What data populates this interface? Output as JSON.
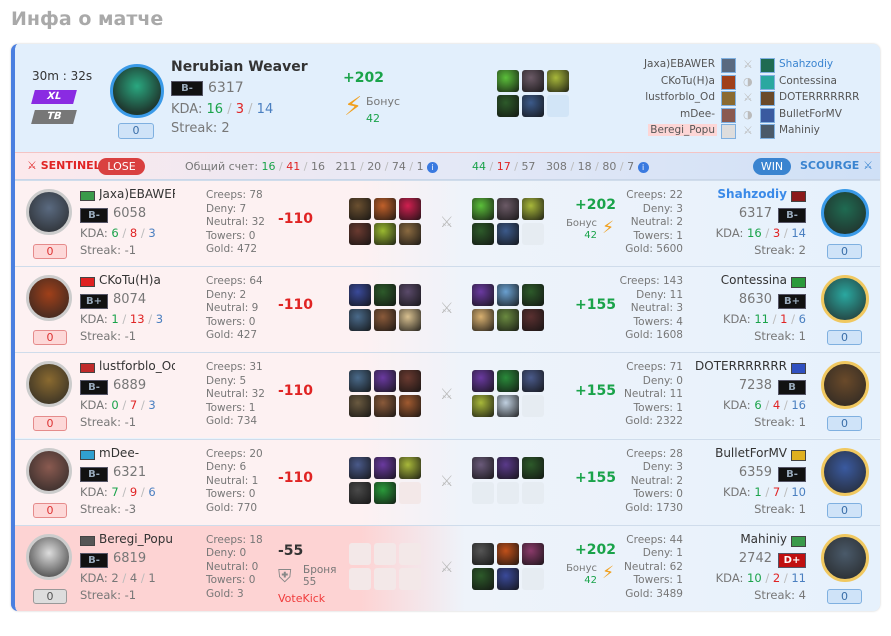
{
  "page_title": "Инфа о матче",
  "match": {
    "duration": "30m : 32s",
    "mode_badges": [
      {
        "label": "XL",
        "color": "#8a2be2"
      },
      {
        "label": "TB",
        "color": "#777777"
      }
    ]
  },
  "featured": {
    "hero": "Nerubian Weaver",
    "rank": "B-",
    "rating": "6317",
    "kda_label": "KDA:",
    "kills": "16",
    "deaths": "3",
    "assists": "14",
    "streak_label": "Streak:",
    "streak": "2",
    "reports": "0",
    "delta": "+202",
    "bonus_label": "Бонус",
    "bonus": "42",
    "avatar_color": "#1f6b52",
    "items": [
      "#5bbf3a",
      "#6b5a66",
      "#a8b83a",
      "#2d5a2a",
      "#3c5a8a",
      null
    ]
  },
  "roster": {
    "sentinel": [
      "Jaxa)EBAWER",
      "CKoTu(H)a",
      "lustforblo_Od",
      "mDee-",
      "Beregi_Popu"
    ],
    "scourge": [
      "Shahzodiy",
      "Contessina",
      "DOTERRRRRRR",
      "BulletForMV",
      "Mahiniy"
    ],
    "middle_icons": [
      "swords-icon",
      "shield-icon",
      "swords-icon",
      "shield-icon",
      "swords-icon"
    ]
  },
  "teams": {
    "sentinel": {
      "name": "SENTINEL",
      "result": "LOSE",
      "score_label": "Общий счет:",
      "k": "16",
      "d": "41",
      "a": "16",
      "creeps": "211",
      "deny": "20",
      "neutral": "74",
      "towers": "1"
    },
    "scourge": {
      "name": "SCOURGE",
      "result": "WIN",
      "k": "44",
      "d": "17",
      "a": "57",
      "creeps": "308",
      "deny": "18",
      "neutral": "80",
      "towers": "7"
    }
  },
  "labels": {
    "creeps": "Creeps:",
    "deny": "Deny:",
    "neutral": "Neutral:",
    "towers": "Towers:",
    "gold": "Gold:",
    "kda": "KDA:",
    "streak": "Streak:",
    "bonus": "Бонус",
    "armor": "Броня",
    "votekick": "VoteKick"
  },
  "rows": [
    {
      "left": {
        "name": "Jaxa)EBAWER",
        "flag": "#3a9a4a",
        "rank": "B-",
        "rating": "6058",
        "k": "6",
        "d": "8",
        "a": "3",
        "streak": "-1",
        "reports": "0",
        "creeps": "78",
        "deny": "7",
        "neutral": "32",
        "towers": "0",
        "gold": "472",
        "delta": "-110",
        "avatar": "#5a6a80",
        "items": [
          "#6b5030",
          "#c0602a",
          "#d02050",
          "#6a3a30",
          "#9ab830",
          "#8a6a40"
        ]
      },
      "right": {
        "name": "Shahzodiy",
        "flag": "#8b1a1a",
        "rank": "B-",
        "rating": "6317",
        "k": "16",
        "d": "3",
        "a": "14",
        "streak": "2",
        "reports": "0",
        "creeps": "22",
        "deny": "3",
        "neutral": "2",
        "towers": "1",
        "gold": "5600",
        "delta": "+202",
        "bonus": "42",
        "avatar": "#1f6b52",
        "highlight": true,
        "items": [
          "#5bbf3a",
          "#6b5a66",
          "#a8b83a",
          "#2d5a2a",
          "#3c5a8a",
          null
        ]
      }
    },
    {
      "left": {
        "name": "CKoTu(H)a",
        "flag": "#e02020",
        "rank": "B+",
        "rating": "8074",
        "k": "1",
        "d": "13",
        "a": "3",
        "streak": "-1",
        "reports": "0",
        "creeps": "64",
        "deny": "2",
        "neutral": "9",
        "towers": "0",
        "gold": "427",
        "delta": "-110",
        "avatar": "#a0401a",
        "items": [
          "#3a4a9a",
          "#2d5a2a",
          "#5a4a6a",
          "#4a6a8a",
          "#8a5a3a",
          "#d8c090"
        ]
      },
      "right": {
        "name": "Contessina",
        "flag": "#2a9a3a",
        "rank": "B+",
        "rating": "8630",
        "k": "11",
        "d": "1",
        "a": "6",
        "streak": "1",
        "reports": "0",
        "creeps": "143",
        "deny": "11",
        "neutral": "3",
        "towers": "4",
        "gold": "1608",
        "delta": "+155",
        "avatar": "#2aa8a0",
        "items": [
          "#6a3aa0",
          "#6aa0d0",
          "#2d5a2a",
          "#d8b070",
          "#6a8a40",
          "#5a3030"
        ]
      }
    },
    {
      "left": {
        "name": "lustforblo_Od",
        "flag": "#c02a2a",
        "rank": "B-",
        "rating": "6889",
        "k": "0",
        "d": "7",
        "a": "3",
        "streak": "-1",
        "reports": "0",
        "creeps": "31",
        "deny": "5",
        "neutral": "32",
        "towers": "1",
        "gold": "734",
        "delta": "-110",
        "avatar": "#8a6a30",
        "items": [
          "#4a6a8a",
          "#6a3aa0",
          "#6a3a30",
          "#6a5a40",
          "#8a5a3a",
          "#a05a30"
        ]
      },
      "right": {
        "name": "DOTERRRRRRR",
        "flag": "#3050c0",
        "rank": "B",
        "rating": "7238",
        "k": "6",
        "d": "4",
        "a": "16",
        "streak": "1",
        "reports": "0",
        "creeps": "71",
        "deny": "0",
        "neutral": "11",
        "towers": "1",
        "gold": "2322",
        "delta": "+155",
        "avatar": "#6a4a2a",
        "items": [
          "#6a3aa0",
          "#2a8a3a",
          "#4a5a8a",
          "#a8b83a",
          "#c0d0e0",
          null
        ]
      }
    },
    {
      "left": {
        "name": "mDee-",
        "flag": "#30a0d0",
        "rank": "B-",
        "rating": "6321",
        "k": "7",
        "d": "9",
        "a": "6",
        "streak": "-3",
        "reports": "0",
        "creeps": "20",
        "deny": "6",
        "neutral": "1",
        "towers": "0",
        "gold": "770",
        "delta": "-110",
        "avatar": "#8a5a50",
        "items": [
          "#4a5a8a",
          "#6a3aa0",
          "#a8b83a",
          "#4a4a4a",
          "#2a9a3a",
          null
        ]
      },
      "right": {
        "name": "BulletForMV",
        "flag": "#e0b020",
        "rank": "B-",
        "rating": "6359",
        "k": "1",
        "d": "7",
        "a": "10",
        "streak": "1",
        "reports": "0",
        "creeps": "28",
        "deny": "3",
        "neutral": "2",
        "towers": "0",
        "gold": "1730",
        "delta": "+155",
        "avatar": "#3a5aa0",
        "items": [
          "#6a5a7a",
          "#5a3a8a",
          "#2d5a2a",
          null,
          null,
          null
        ]
      }
    },
    {
      "left": {
        "name": "Beregi_Popu",
        "flag": "#555555",
        "rank": "B-",
        "rating": "6819",
        "k": "2",
        "d": "4",
        "a": "1",
        "streak": "-1",
        "reports": "0",
        "creeps": "18",
        "deny": "0",
        "neutral": "0",
        "towers": "0",
        "gold": "3",
        "delta": "-55",
        "armor": "55",
        "leaver": true,
        "avatar": "#dddddd",
        "items": [
          null,
          null,
          null,
          null,
          null,
          null
        ]
      },
      "right": {
        "name": "Mahiniy",
        "flag": "#3a9a4a",
        "rank": "D+",
        "rating": "2742",
        "k": "10",
        "d": "2",
        "a": "11",
        "streak": "4",
        "reports": "0",
        "creeps": "44",
        "deny": "1",
        "neutral": "62",
        "towers": "1",
        "gold": "3489",
        "delta": "+202",
        "bonus": "42",
        "avatar": "#4a5a6a",
        "items": [
          "#555555",
          "#c0501a",
          "#8a3a6a",
          "#2d5a2a",
          "#3a4a9a",
          null
        ]
      }
    }
  ]
}
